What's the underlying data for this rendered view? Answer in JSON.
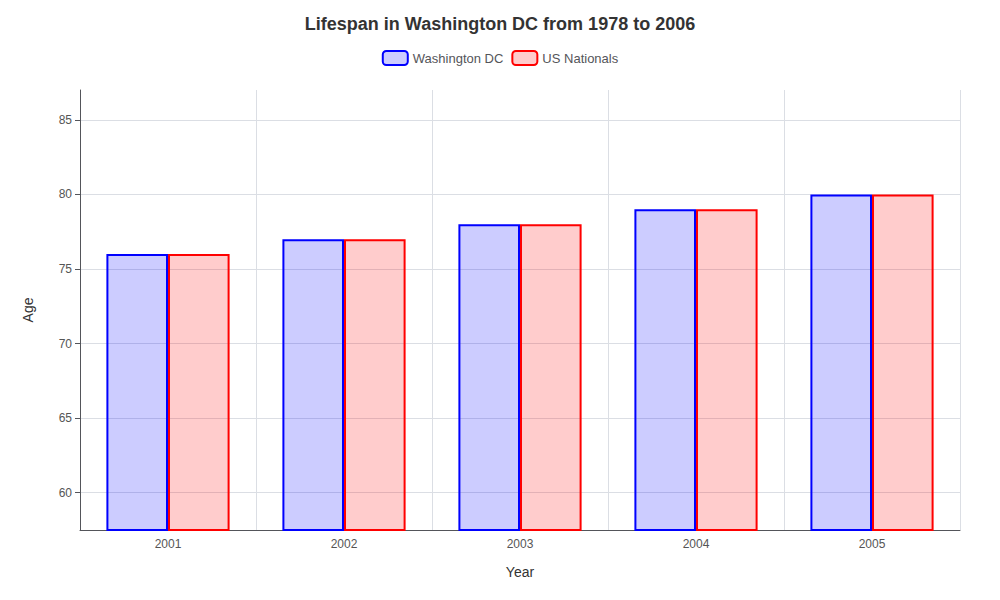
{
  "chart_data": {
    "type": "bar",
    "title": "Lifespan in Washington DC from 1978 to 2006",
    "x_label": "Year",
    "y_label": "Age",
    "categories": [
      "2001",
      "2002",
      "2003",
      "2004",
      "2005"
    ],
    "series": [
      {
        "name": "Washington DC",
        "color": "#0000ff",
        "values": [
          76,
          77,
          78,
          79,
          80
        ]
      },
      {
        "name": "US Nationals",
        "color": "#ff0000",
        "values": [
          76,
          77,
          78,
          79,
          80
        ]
      }
    ],
    "ylim": [
      57.5,
      87
    ],
    "yticks": [
      60,
      65,
      70,
      75,
      80,
      85
    ],
    "grid": true,
    "legend": "top"
  }
}
